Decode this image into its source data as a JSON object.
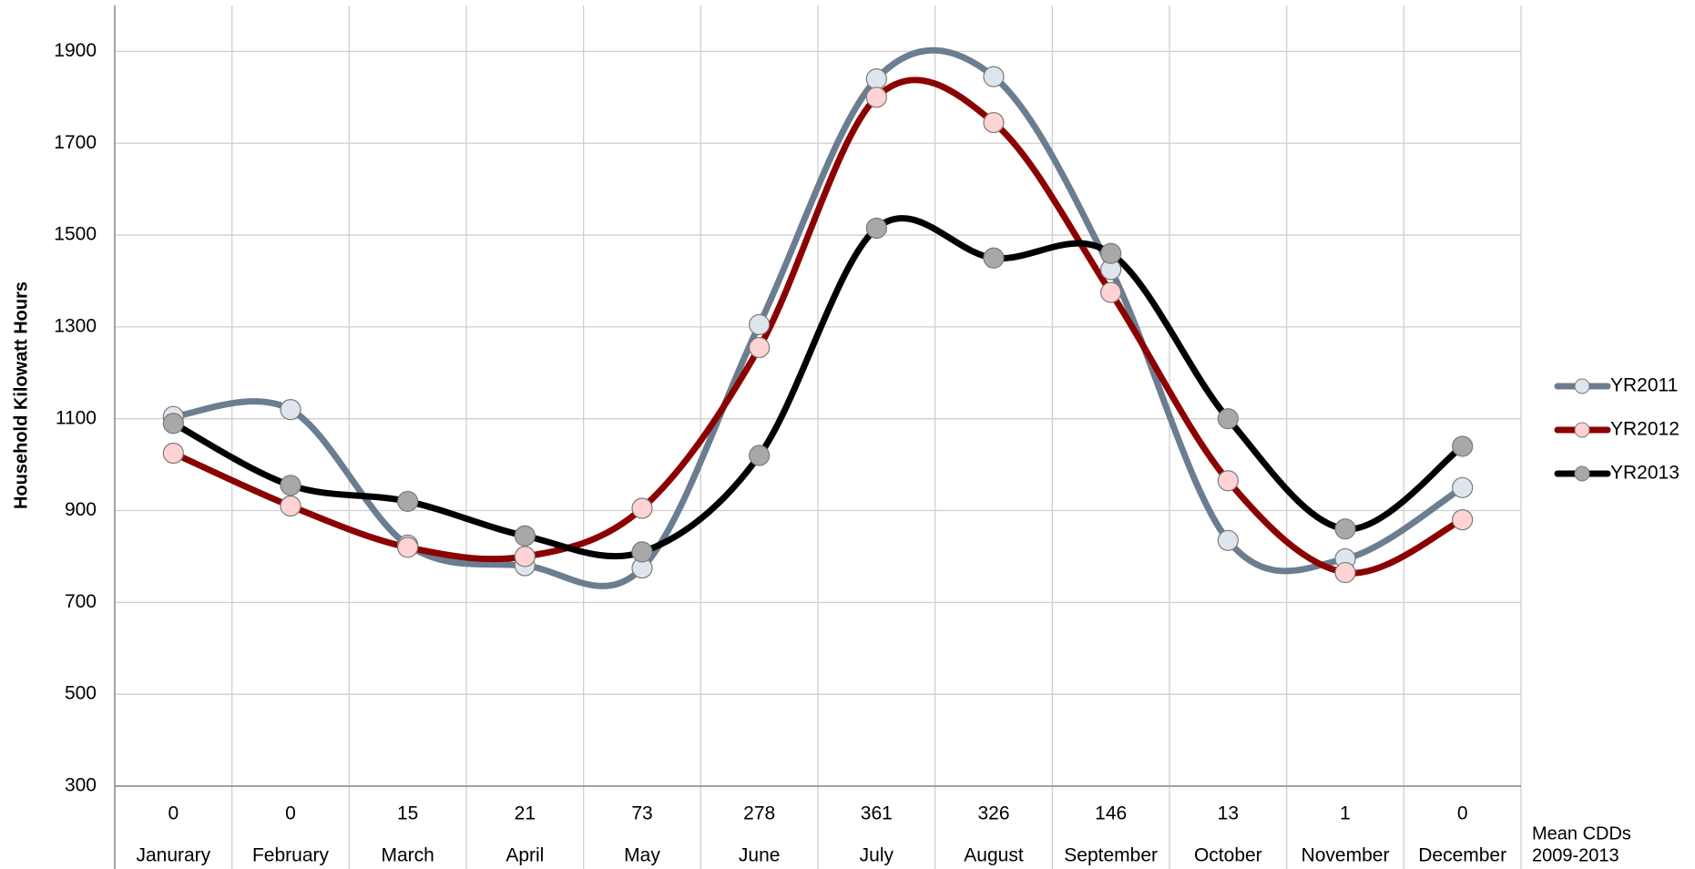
{
  "chart_data": {
    "type": "line",
    "y_label": "Household Kilowatt Hours",
    "categories": [
      "Janurary",
      "February",
      "March",
      "April",
      "May",
      "June",
      "July",
      "August",
      "September",
      "October",
      "November",
      "December"
    ],
    "cdd_label": [
      "Mean CDDs",
      "2009-2013"
    ],
    "cdd_values": [
      0,
      0,
      15,
      21,
      73,
      278,
      361,
      326,
      146,
      13,
      1,
      0
    ],
    "series": [
      {
        "name": "YR2011",
        "color": "#6b7d90",
        "marker_color": "#dfe5ec",
        "values": [
          1105,
          1120,
          825,
          780,
          775,
          1305,
          1840,
          1845,
          1425,
          835,
          795,
          950
        ]
      },
      {
        "name": "YR2012",
        "color": "#8b0000",
        "marker_color": "#ffd3d3",
        "values": [
          1025,
          910,
          820,
          800,
          905,
          1255,
          1800,
          1745,
          1375,
          965,
          765,
          880
        ]
      },
      {
        "name": "YR2013",
        "color": "#000000",
        "marker_color": "#a8a8a8",
        "values": [
          1090,
          955,
          920,
          845,
          810,
          1020,
          1515,
          1450,
          1460,
          1100,
          860,
          1040
        ]
      }
    ],
    "ylim": [
      300,
      2000
    ],
    "yticks": [
      300,
      500,
      700,
      900,
      1100,
      1300,
      1500,
      1700,
      1900
    ],
    "grid": true,
    "legend": "right"
  }
}
